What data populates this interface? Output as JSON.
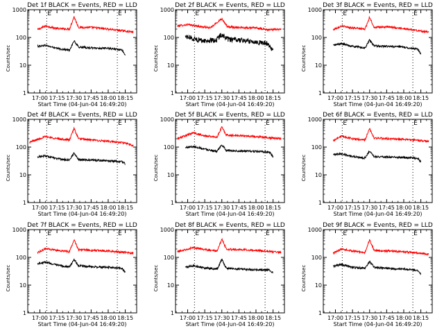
{
  "figure": {
    "background": "#ffffff",
    "events_color": "#000000",
    "lld_color": "#ff0000",
    "marker_label": "E"
  },
  "chart_data": [
    {
      "type": "line",
      "title": "Det 1f BLACK = Events, RED = LLD",
      "xlabel": "Start Time (04-Jun-04 16:49:20)",
      "ylabel": "Counts/sec",
      "yscale": "log",
      "ylim": [
        1,
        1000
      ],
      "ytick_labels": [
        "1",
        "10",
        "100",
        "1000"
      ],
      "xlim": [
        "16:49:20",
        "18:25:00"
      ],
      "xtick_labels": [
        "17:00",
        "17:15",
        "17:30",
        "17:45",
        "18:00",
        "18:15"
      ],
      "markers": [
        "17:06",
        "18:08"
      ],
      "series": [
        {
          "color": "red",
          "x": [
            "16:58",
            "17:05",
            "17:15",
            "17:26",
            "17:30",
            "17:34",
            "17:45",
            "18:00",
            "18:15",
            "18:22"
          ],
          "values": [
            190,
            260,
            210,
            200,
            560,
            230,
            230,
            200,
            170,
            155
          ]
        },
        {
          "color": "black",
          "x": [
            "16:58",
            "17:05",
            "17:15",
            "17:26",
            "17:30",
            "17:34",
            "17:45",
            "18:00",
            "18:12",
            "18:15"
          ],
          "values": [
            48,
            52,
            40,
            35,
            75,
            45,
            42,
            40,
            36,
            22
          ]
        }
      ]
    },
    {
      "type": "line",
      "title": "Det 2f BLACK = Events, RED = LLD",
      "xlabel": "Start Time (04-Jun-04 16:49:20)",
      "ylabel": "Counts/sec",
      "yscale": "log",
      "ylim": [
        1,
        1000
      ],
      "ytick_labels": [
        "1",
        "10",
        "100",
        "1000"
      ],
      "xlim": [
        "16:49:20",
        "18:25:00"
      ],
      "xtick_labels": [
        "17:00",
        "17:15",
        "17:30",
        "17:45",
        "18:00",
        "18:15"
      ],
      "markers": [
        "17:06",
        "18:08"
      ],
      "series": [
        {
          "color": "red",
          "x": [
            "16:51",
            "17:00",
            "17:10",
            "17:20",
            "17:30",
            "17:35",
            "17:45",
            "18:00",
            "18:10",
            "18:22"
          ],
          "values": [
            260,
            290,
            250,
            220,
            480,
            240,
            230,
            220,
            190,
            200
          ]
        },
        {
          "color": "black",
          "x": [
            "16:58",
            "17:05",
            "17:15",
            "17:25",
            "17:30",
            "17:35",
            "17:45",
            "18:00",
            "18:10",
            "18:15"
          ],
          "values": [
            110,
            90,
            75,
            80,
            130,
            85,
            80,
            70,
            60,
            35
          ]
        }
      ]
    },
    {
      "type": "line",
      "title": "Det 3f BLACK = Events, RED = LLD",
      "xlabel": "Start Time (04-Jun-04 16:49:20)",
      "ylabel": "Counts/sec",
      "yscale": "log",
      "ylim": [
        1,
        1000
      ],
      "ytick_labels": [
        "1",
        "10",
        "100",
        "1000"
      ],
      "xlim": [
        "16:49:20",
        "18:25:00"
      ],
      "xtick_labels": [
        "17:00",
        "17:15",
        "17:30",
        "17:45",
        "18:00",
        "18:15"
      ],
      "markers": [
        "17:06",
        "18:08"
      ],
      "series": [
        {
          "color": "red",
          "x": [
            "16:58",
            "17:05",
            "17:15",
            "17:26",
            "17:30",
            "17:34",
            "17:45",
            "18:00",
            "18:15",
            "18:22"
          ],
          "values": [
            190,
            260,
            220,
            200,
            540,
            230,
            240,
            210,
            170,
            155
          ]
        },
        {
          "color": "black",
          "x": [
            "16:58",
            "17:05",
            "17:15",
            "17:26",
            "17:30",
            "17:34",
            "17:45",
            "18:00",
            "18:12",
            "18:15"
          ],
          "values": [
            52,
            60,
            48,
            42,
            80,
            50,
            48,
            45,
            38,
            26
          ]
        }
      ]
    },
    {
      "type": "line",
      "title": "Det 4f BLACK = Events, RED = LLD",
      "xlabel": "Start Time (04-Jun-04 16:49:20)",
      "ylabel": "Counts/sec",
      "yscale": "log",
      "ylim": [
        1,
        1000
      ],
      "ytick_labels": [
        "1",
        "10",
        "100",
        "1000"
      ],
      "xlim": [
        "16:49:20",
        "18:25:00"
      ],
      "xtick_labels": [
        "17:00",
        "17:15",
        "17:30",
        "17:45",
        "18:00",
        "18:15"
      ],
      "markers": [
        "17:06",
        "18:08"
      ],
      "series": [
        {
          "color": "red",
          "x": [
            "16:51",
            "17:05",
            "17:15",
            "17:26",
            "17:30",
            "17:34",
            "17:45",
            "18:00",
            "18:15",
            "18:22"
          ],
          "values": [
            150,
            240,
            200,
            180,
            470,
            200,
            180,
            160,
            140,
            110
          ]
        },
        {
          "color": "black",
          "x": [
            "16:58",
            "17:05",
            "17:15",
            "17:26",
            "17:30",
            "17:34",
            "17:45",
            "18:00",
            "18:12",
            "18:15"
          ],
          "values": [
            45,
            48,
            38,
            34,
            62,
            36,
            34,
            32,
            30,
            25
          ]
        }
      ]
    },
    {
      "type": "line",
      "title": "Det 5f BLACK = Events, RED = LLD",
      "xlabel": "Start Time (04-Jun-04 16:49:20)",
      "ylabel": "Counts/sec",
      "yscale": "log",
      "ylim": [
        1,
        1000
      ],
      "ytick_labels": [
        "1",
        "10",
        "100",
        "1000"
      ],
      "xlim": [
        "16:49:20",
        "18:25:00"
      ],
      "xtick_labels": [
        "17:00",
        "17:15",
        "17:30",
        "17:45",
        "18:00",
        "18:15"
      ],
      "markers": [
        "17:06",
        "18:08"
      ],
      "series": [
        {
          "color": "red",
          "x": [
            "16:51",
            "17:05",
            "17:15",
            "17:26",
            "17:30",
            "17:34",
            "17:45",
            "18:00",
            "18:15",
            "18:22"
          ],
          "values": [
            200,
            330,
            250,
            230,
            530,
            270,
            260,
            240,
            210,
            200
          ]
        },
        {
          "color": "black",
          "x": [
            "16:58",
            "17:05",
            "17:15",
            "17:26",
            "17:30",
            "17:34",
            "17:45",
            "18:00",
            "18:12",
            "18:15"
          ],
          "values": [
            95,
            105,
            85,
            70,
            120,
            75,
            72,
            70,
            65,
            45
          ]
        }
      ]
    },
    {
      "type": "line",
      "title": "Det 6f BLACK = Events, RED = LLD",
      "xlabel": "Start Time (04-Jun-04 16:49:20)",
      "ylabel": "Counts/sec",
      "yscale": "log",
      "ylim": [
        1,
        1000
      ],
      "ytick_labels": [
        "1",
        "10",
        "100",
        "1000"
      ],
      "xlim": [
        "16:49:20",
        "18:25:00"
      ],
      "xtick_labels": [
        "17:00",
        "17:15",
        "17:30",
        "17:45",
        "18:00",
        "18:15"
      ],
      "markers": [
        "17:06",
        "18:08"
      ],
      "series": [
        {
          "color": "red",
          "x": [
            "16:58",
            "17:05",
            "17:15",
            "17:26",
            "17:30",
            "17:34",
            "17:45",
            "18:00",
            "18:15",
            "18:22"
          ],
          "values": [
            170,
            250,
            200,
            180,
            460,
            210,
            200,
            190,
            170,
            160
          ]
        },
        {
          "color": "black",
          "x": [
            "16:58",
            "17:05",
            "17:15",
            "17:26",
            "17:30",
            "17:34",
            "17:45",
            "18:00",
            "18:12",
            "18:15"
          ],
          "values": [
            52,
            58,
            46,
            40,
            72,
            46,
            44,
            42,
            40,
            30
          ]
        }
      ]
    },
    {
      "type": "line",
      "title": "Det 7f BLACK = Events, RED = LLD",
      "xlabel": "Start Time (04-Jun-04 16:49:20)",
      "ylabel": "Counts/sec",
      "yscale": "log",
      "ylim": [
        1,
        1000
      ],
      "ytick_labels": [
        "1",
        "10",
        "100",
        "1000"
      ],
      "xlim": [
        "16:49:20",
        "18:25:00"
      ],
      "xtick_labels": [
        "17:00",
        "17:15",
        "17:30",
        "17:45",
        "18:00",
        "18:15"
      ],
      "markers": [
        "17:06",
        "18:08"
      ],
      "series": [
        {
          "color": "red",
          "x": [
            "16:58",
            "17:05",
            "17:15",
            "17:26",
            "17:30",
            "17:34",
            "17:45",
            "18:00",
            "18:15",
            "18:22"
          ],
          "values": [
            150,
            210,
            180,
            160,
            430,
            190,
            180,
            170,
            150,
            140
          ]
        },
        {
          "color": "black",
          "x": [
            "16:58",
            "17:05",
            "17:15",
            "17:26",
            "17:30",
            "17:34",
            "17:45",
            "18:00",
            "18:12",
            "18:15"
          ],
          "values": [
            60,
            68,
            52,
            45,
            85,
            50,
            46,
            44,
            40,
            30
          ]
        }
      ]
    },
    {
      "type": "line",
      "title": "Det 8f BLACK = Events, RED = LLD",
      "xlabel": "Start Time (04-Jun-04 16:49:20)",
      "ylabel": "Counts/sec",
      "yscale": "log",
      "ylim": [
        1,
        1000
      ],
      "ytick_labels": [
        "1",
        "10",
        "100",
        "1000"
      ],
      "xlim": [
        "16:49:20",
        "18:25:00"
      ],
      "xtick_labels": [
        "17:00",
        "17:15",
        "17:30",
        "17:45",
        "18:00",
        "18:15"
      ],
      "markers": [
        "17:06",
        "18:08"
      ],
      "series": [
        {
          "color": "red",
          "x": [
            "16:51",
            "17:05",
            "17:15",
            "17:26",
            "17:30",
            "17:34",
            "17:45",
            "18:00",
            "18:15",
            "18:22"
          ],
          "values": [
            160,
            230,
            190,
            170,
            460,
            200,
            190,
            180,
            160,
            150
          ]
        },
        {
          "color": "black",
          "x": [
            "16:58",
            "17:05",
            "17:15",
            "17:26",
            "17:30",
            "17:34",
            "17:45",
            "18:00",
            "18:12",
            "18:15"
          ],
          "values": [
            45,
            50,
            42,
            38,
            85,
            40,
            38,
            36,
            35,
            28
          ]
        }
      ]
    },
    {
      "type": "line",
      "title": "Det 9f BLACK = Events, RED = LLD",
      "xlabel": "Start Time (04-Jun-04 16:49:20)",
      "ylabel": "Counts/sec",
      "yscale": "log",
      "ylim": [
        1,
        1000
      ],
      "ytick_labels": [
        "1",
        "10",
        "100",
        "1000"
      ],
      "xlim": [
        "16:49:20",
        "18:25:00"
      ],
      "xtick_labels": [
        "17:00",
        "17:15",
        "17:30",
        "17:45",
        "18:00",
        "18:15"
      ],
      "markers": [
        "17:06",
        "18:08"
      ],
      "series": [
        {
          "color": "red",
          "x": [
            "16:58",
            "17:05",
            "17:15",
            "17:26",
            "17:30",
            "17:34",
            "17:45",
            "18:00",
            "18:15",
            "18:22"
          ],
          "values": [
            140,
            200,
            170,
            150,
            430,
            180,
            170,
            160,
            140,
            130
          ]
        },
        {
          "color": "black",
          "x": [
            "16:58",
            "17:05",
            "17:15",
            "17:26",
            "17:30",
            "17:34",
            "17:45",
            "18:00",
            "18:12",
            "18:15"
          ],
          "values": [
            48,
            55,
            44,
            40,
            72,
            44,
            40,
            38,
            34,
            26
          ]
        }
      ]
    }
  ]
}
